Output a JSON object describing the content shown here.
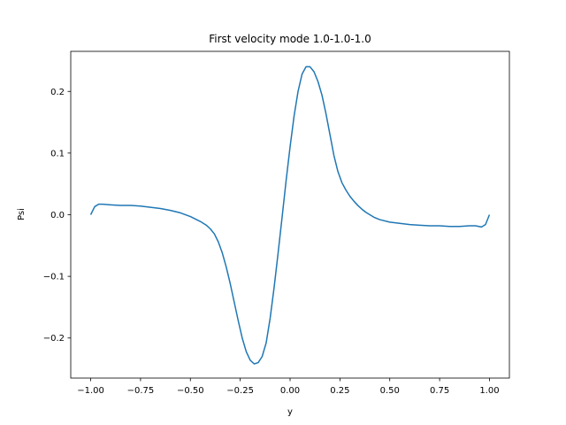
{
  "chart_data": {
    "type": "line",
    "title": "First velocity mode 1.0-1.0-1.0",
    "xlabel": "y",
    "ylabel": "Psi",
    "xlim": [
      -1.1,
      1.1
    ],
    "ylim": [
      -0.265,
      0.265
    ],
    "xticks": [
      -1.0,
      -0.75,
      -0.5,
      -0.25,
      0.0,
      0.25,
      0.5,
      0.75,
      1.0
    ],
    "xtick_labels": [
      "−1.00",
      "−0.75",
      "−0.50",
      "−0.25",
      "0.00",
      "0.25",
      "0.50",
      "0.75",
      "1.00"
    ],
    "yticks": [
      -0.2,
      -0.1,
      0.0,
      0.1,
      0.2
    ],
    "ytick_labels": [
      "−0.2",
      "−0.1",
      "0.0",
      "0.1",
      "0.2"
    ],
    "grid": false,
    "colors": {
      "line": "#1f77b4"
    },
    "series": [
      {
        "x": [
          -1.0,
          -0.98,
          -0.96,
          -0.94,
          -0.9,
          -0.85,
          -0.8,
          -0.75,
          -0.7,
          -0.65,
          -0.6,
          -0.55,
          -0.5,
          -0.45,
          -0.42,
          -0.4,
          -0.38,
          -0.36,
          -0.34,
          -0.32,
          -0.3,
          -0.28,
          -0.26,
          -0.24,
          -0.22,
          -0.2,
          -0.18,
          -0.16,
          -0.14,
          -0.12,
          -0.1,
          -0.08,
          -0.06,
          -0.04,
          -0.02,
          0.0,
          0.02,
          0.04,
          0.06,
          0.08,
          0.1,
          0.12,
          0.14,
          0.16,
          0.18,
          0.2,
          0.22,
          0.24,
          0.26,
          0.28,
          0.3,
          0.32,
          0.34,
          0.36,
          0.38,
          0.4,
          0.42,
          0.45,
          0.5,
          0.55,
          0.6,
          0.65,
          0.7,
          0.75,
          0.8,
          0.85,
          0.9,
          0.93,
          0.96,
          0.98,
          1.0
        ],
        "y": [
          0.0,
          0.013,
          0.017,
          0.017,
          0.016,
          0.015,
          0.015,
          0.014,
          0.012,
          0.01,
          0.007,
          0.003,
          -0.003,
          -0.011,
          -0.017,
          -0.023,
          -0.031,
          -0.044,
          -0.062,
          -0.085,
          -0.112,
          -0.142,
          -0.172,
          -0.2,
          -0.222,
          -0.236,
          -0.242,
          -0.24,
          -0.23,
          -0.208,
          -0.168,
          -0.118,
          -0.062,
          -0.004,
          0.055,
          0.11,
          0.16,
          0.2,
          0.228,
          0.24,
          0.24,
          0.232,
          0.216,
          0.194,
          0.164,
          0.13,
          0.096,
          0.07,
          0.052,
          0.04,
          0.03,
          0.022,
          0.015,
          0.009,
          0.004,
          0.0,
          -0.004,
          -0.008,
          -0.012,
          -0.014,
          -0.016,
          -0.017,
          -0.018,
          -0.018,
          -0.019,
          -0.019,
          -0.018,
          -0.018,
          -0.02,
          -0.016,
          0.0
        ]
      }
    ]
  }
}
